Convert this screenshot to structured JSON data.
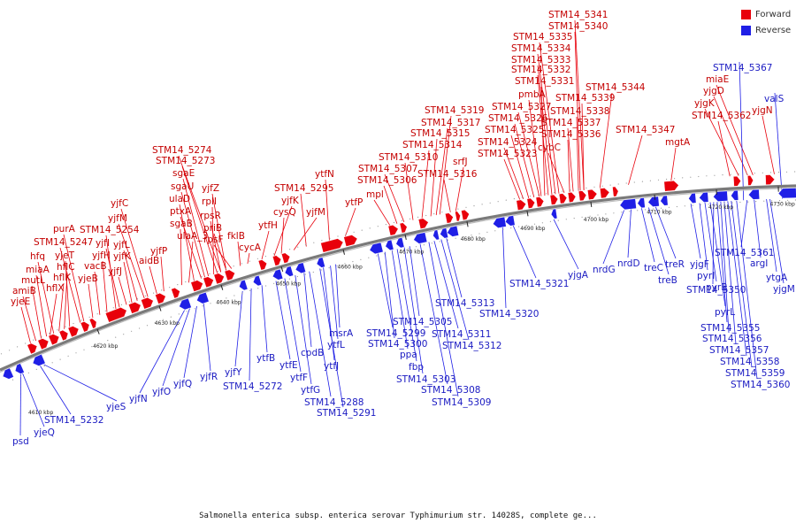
{
  "colors": {
    "forward": "#e8000b",
    "reverse": "#1f1fe6",
    "backbone": "#7a7a7a"
  },
  "legend": [
    {
      "label": "Forward",
      "color": "#e8000b"
    },
    {
      "label": "Reverse",
      "color": "#1f1fe6"
    }
  ],
  "caption": "Salmonella enterica subsp. enterica serovar Typhimurium str. 14028S, complete ge...",
  "ticks": [
    "4620 kbp",
    "4630 kbp",
    "4640 kbp",
    "4650 kbp",
    "4660 kbp",
    "4670 kbp",
    "4680 kbp",
    "4690 kbp",
    "4700 kbp",
    "4710 kbp",
    "4720 kbp",
    "4730 kbp"
  ],
  "tick_small_labels": [
    "4610 kbp"
  ],
  "forward_labels": [
    "yjeE",
    "amiB",
    "mutL",
    "hflX",
    "miaA",
    "hfq",
    "hflK",
    "hflC",
    "yjeT",
    "STM14_5247",
    "purA",
    "yjeB",
    "vacB",
    "yjfH",
    "STM14_5254",
    "yjfI",
    "yjfJ",
    "yjfK",
    "yjfL",
    "yjfM",
    "yjfC",
    "aidB",
    "yjfP",
    "sgaB",
    "ulaA_3",
    "ulaD",
    "ptxA",
    "sgaU",
    "sgaE",
    "rplI",
    "rpsR",
    "yjfZ",
    "priB",
    "rpsF",
    "STM14_5273",
    "STM14_5274",
    "fklB",
    "cycA",
    "ytfH",
    "yjfK",
    "cysQ",
    "yjfM",
    "STM14_5295",
    "ytfN",
    "ytfP",
    "mpl",
    "STM14_5306",
    "STM14_5307",
    "STM14_5310",
    "STM14_5314",
    "STM14_5315",
    "STM14_5316",
    "STM14_5317",
    "STM14_5319",
    "srfJ",
    "STM14_5323",
    "STM14_5324",
    "STM14_5325",
    "STM14_5326",
    "STM14_5327",
    "pmbA",
    "cybC",
    "STM14_5331",
    "STM14_5332",
    "STM14_5333",
    "STM14_5334",
    "STM14_5335",
    "STM14_5340",
    "STM14_5341",
    "STM14_5336",
    "STM14_5337",
    "STM14_5338",
    "STM14_5339",
    "STM14_5344",
    "STM14_5347",
    "mgtA",
    "STM14_5362",
    "yjgK",
    "yjgD",
    "miaE",
    "yjgN"
  ],
  "reverse_labels": [
    "psd",
    "yjeQ",
    "STM14_5232",
    "yjeS",
    "yjfN",
    "yjfO",
    "yjfQ",
    "yjfR",
    "yjfY",
    "STM14_5272",
    "ytfB",
    "ytfE",
    "ytfF",
    "ytfG",
    "cpdB",
    "STM14_5288",
    "STM14_5291",
    "ytfJ",
    "ytfL",
    "msrA",
    "STM14_5299",
    "STM14_5300",
    "ppa",
    "fbp",
    "STM14_5303",
    "STM14_5305",
    "STM14_5308",
    "STM14_5309",
    "STM14_5311",
    "STM14_5312",
    "STM14_5313",
    "STM14_5320",
    "STM14_5321",
    "yjgA",
    "nrdG",
    "nrdD",
    "treC",
    "treB",
    "treR",
    "yjgF",
    "pyrI",
    "pyrB",
    "pyrL",
    "STM14_5350",
    "STM14_5355",
    "STM14_5356",
    "STM14_5357",
    "STM14_5358",
    "STM14_5359",
    "STM14_5360",
    "STM14_5361",
    "argI",
    "ytgA",
    "yjgM",
    "STM14_5367",
    "valS"
  ]
}
